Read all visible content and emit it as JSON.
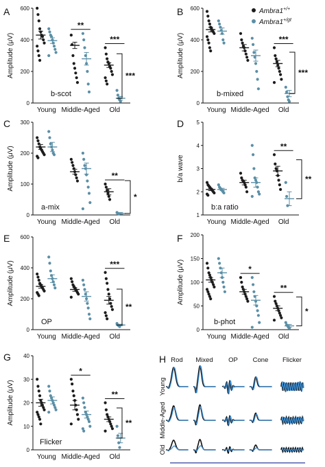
{
  "legend": {
    "wt": "Ambra1",
    "wt_sup": "+/+",
    "gt": "Ambra1",
    "gt_sup": "+/gt",
    "wt_color": "#1c1c1c",
    "gt_color": "#5b8fa6"
  },
  "chart_data": [
    {
      "id": "A",
      "type": "scatter",
      "ylabel": "Amplitude (μV)",
      "annotation": "b-scot",
      "categories": [
        "Young",
        "Middle-Aged",
        "Old"
      ],
      "ylim": [
        0,
        600
      ],
      "yticks": [
        0,
        200,
        400,
        600
      ],
      "series": [
        {
          "values": [
            [
              600,
              560,
              520,
              470,
              450,
              430,
              420,
              400,
              380,
              360,
              330,
              300,
              270
            ],
            [
              430,
              370,
              300,
              250,
              220,
              190,
              160,
              130
            ],
            [
              350,
              310,
              280,
              260,
              250,
              230,
              220,
              200,
              180,
              160,
              140,
              120
            ]
          ],
          "means": [
            430,
            365,
            240
          ],
          "sems": [
            25,
            20,
            15
          ]
        },
        {
          "values": [
            [
              470,
              450,
              430,
              420,
              400,
              380,
              360,
              340,
              320,
              300
            ],
            [
              440,
              400,
              350,
              300,
              250,
              200,
              120,
              70
            ],
            [
              80,
              50,
              30,
              20,
              10
            ]
          ],
          "means": [
            395,
            280,
            30
          ],
          "sems": [
            18,
            40,
            12
          ]
        }
      ],
      "sig": [
        {
          "text": "**",
          "group": 1
        },
        {
          "text": "***",
          "group": 2
        },
        {
          "text": "***",
          "group": "bracket"
        }
      ]
    },
    {
      "id": "B",
      "type": "scatter",
      "ylabel": "Amplitude (μV)",
      "annotation": "b-mixed",
      "categories": [
        "Young",
        "Middle-Aged",
        "Old"
      ],
      "ylim": [
        0,
        600
      ],
      "yticks": [
        0,
        200,
        400,
        600
      ],
      "series": [
        {
          "values": [
            [
              580,
              550,
              520,
              500,
              480,
              470,
              460,
              450,
              440,
              420,
              400,
              380,
              350,
              330
            ],
            [
              440,
              400,
              380,
              360,
              350,
              330,
              310,
              290,
              270
            ],
            [
              350,
              300,
              280,
              260,
              240,
              220,
              200,
              180,
              150,
              130
            ]
          ],
          "means": [
            465,
            350,
            250
          ],
          "sems": [
            15,
            20,
            20
          ]
        },
        {
          "values": [
            [
              520,
              500,
              480,
              460,
              440,
              400,
              380
            ],
            [
              410,
              370,
              320,
              290,
              250,
              200,
              150,
              90
            ],
            [
              100,
              70,
              40,
              20,
              10
            ]
          ],
          "means": [
            455,
            300,
            60
          ],
          "sems": [
            20,
            35,
            20
          ]
        }
      ],
      "sig": [
        {
          "text": "***",
          "group": 2
        },
        {
          "text": "***",
          "group": "bracket"
        }
      ]
    },
    {
      "id": "C",
      "type": "scatter",
      "ylabel": "Amplitude (μV)",
      "annotation": "a-mix",
      "categories": [
        "Young",
        "Middle-Aged",
        "Old"
      ],
      "ylim": [
        0,
        300
      ],
      "yticks": [
        0,
        100,
        200,
        300
      ],
      "series": [
        {
          "values": [
            [
              250,
              240,
              230,
              220,
              215,
              210,
              205,
              200,
              195,
              190,
              185
            ],
            [
              180,
              170,
              160,
              150,
              140,
              130,
              120,
              110
            ],
            [
              100,
              90,
              80,
              70,
              60,
              50
            ]
          ],
          "means": [
            220,
            140,
            75
          ],
          "sems": [
            8,
            8,
            10
          ]
        },
        {
          "values": [
            [
              270,
              250,
              230,
              220,
              210,
              200,
              195
            ],
            [
              200,
              180,
              160,
              150,
              130,
              110,
              90,
              70,
              40,
              20
            ],
            [
              8,
              5,
              3
            ]
          ],
          "means": [
            220,
            150,
            5
          ],
          "sems": [
            15,
            18,
            3
          ]
        }
      ],
      "sig": [
        {
          "text": "**",
          "group": 2
        },
        {
          "text": "*",
          "group": "bracket"
        }
      ]
    },
    {
      "id": "D",
      "type": "scatter",
      "ylabel": "b/a wave",
      "annotation": "b:a ratio",
      "categories": [
        "Young",
        "Middle-Aged",
        "Old"
      ],
      "ylim": [
        1,
        5
      ],
      "yticks": [
        1,
        2,
        3,
        4,
        5
      ],
      "series": [
        {
          "values": [
            [
              2.4,
              2.3,
              2.25,
              2.2,
              2.15,
              2.1,
              2.05,
              2.0,
              1.95,
              1.9,
              1.85
            ],
            [
              2.8,
              2.6,
              2.5,
              2.45,
              2.4,
              2.3,
              2.2,
              2.0
            ],
            [
              3.6,
              3.2,
              3.0,
              2.9,
              2.7,
              2.5,
              2.3,
              2.1
            ]
          ],
          "means": [
            2.1,
            2.4,
            2.9
          ],
          "sems": [
            0.05,
            0.1,
            0.2
          ]
        },
        {
          "values": [
            [
              2.3,
              2.2,
              2.15,
              2.1,
              2.05,
              2.0,
              1.95
            ],
            [
              4.0,
              3.6,
              3.0,
              2.6,
              2.5,
              2.4,
              2.2,
              2.0,
              1.9,
              1.8
            ],
            [
              2.4,
              1.8,
              1.4
            ]
          ],
          "means": [
            2.1,
            2.4,
            1.7
          ],
          "sems": [
            0.05,
            0.2,
            0.3
          ]
        }
      ],
      "sig": [
        {
          "text": "**",
          "group": 2
        },
        {
          "text": "**",
          "group": "bracket"
        }
      ]
    },
    {
      "id": "E",
      "type": "scatter",
      "ylabel": "Amplitude (μV)",
      "annotation": "OP",
      "categories": [
        "Young",
        "Middle-Aged",
        "Old"
      ],
      "ylim": [
        0,
        600
      ],
      "yticks": [
        0,
        200,
        400,
        600
      ],
      "series": [
        {
          "values": [
            [
              360,
              340,
              320,
              300,
              290,
              280,
              270,
              260,
              250,
              240,
              230,
              220
            ],
            [
              330,
              310,
              290,
              280,
              270,
              260,
              250,
              240,
              230,
              210
            ],
            [
              370,
              330,
              300,
              260,
              230,
              200,
              170,
              150,
              130,
              110,
              90,
              70
            ]
          ],
          "means": [
            280,
            260,
            190
          ],
          "sems": [
            12,
            12,
            25
          ]
        },
        {
          "values": [
            [
              470,
              430,
              380,
              350,
              330,
              310,
              290,
              270
            ],
            [
              320,
              290,
              260,
              230,
              200,
              170,
              140,
              100,
              70
            ],
            [
              40,
              30,
              25,
              20
            ]
          ],
          "means": [
            330,
            215,
            30
          ],
          "sems": [
            25,
            30,
            5
          ]
        }
      ],
      "sig": [
        {
          "text": "***",
          "group": 2
        },
        {
          "text": "**",
          "group": "bracket"
        }
      ]
    },
    {
      "id": "F",
      "type": "scatter",
      "ylabel": "Amplitude (μV)",
      "annotation": "b-phot",
      "categories": [
        "Young",
        "Middle-Aged",
        "Old"
      ],
      "ylim": [
        0,
        200
      ],
      "yticks": [
        0,
        50,
        100,
        150,
        200
      ],
      "series": [
        {
          "values": [
            [
              140,
              130,
              120,
              115,
              110,
              105,
              100,
              95,
              90,
              85,
              80,
              75,
              70,
              65
            ],
            [
              110,
              100,
              90,
              85,
              80,
              75,
              70,
              65,
              60
            ],
            [
              70,
              60,
              55,
              50,
              45,
              40,
              35,
              30,
              25,
              20
            ]
          ],
          "means": [
            105,
            80,
            45
          ],
          "sems": [
            5,
            5,
            5
          ]
        },
        {
          "values": [
            [
              150,
              140,
              130,
              120,
              110,
              100,
              90,
              80
            ],
            [
              110,
              95,
              80,
              70,
              60,
              50,
              40,
              30,
              15,
              5
            ],
            [
              15,
              10,
              8,
              5,
              3
            ]
          ],
          "means": [
            120,
            62,
            8
          ],
          "sems": [
            10,
            10,
            3
          ]
        }
      ],
      "sig": [
        {
          "text": "*",
          "group": 1
        },
        {
          "text": "**",
          "group": 2
        },
        {
          "text": "*",
          "group": "bracket"
        }
      ]
    },
    {
      "id": "G",
      "type": "scatter",
      "ylabel": "Amplitude (μV)",
      "annotation": "Flicker",
      "categories": [
        "Young",
        "Middle-Aged",
        "Old"
      ],
      "ylim": [
        0,
        40
      ],
      "yticks": [
        0,
        10,
        20,
        30,
        40
      ],
      "series": [
        {
          "values": [
            [
              30,
              27,
              25,
              23,
              21,
              20,
              19,
              18,
              17,
              16,
              15,
              14,
              13,
              11
            ],
            [
              30,
              28,
              25,
              23,
              21,
              19,
              17,
              15,
              13,
              11
            ],
            [
              20,
              17,
              15,
              14,
              13,
              12,
              11,
              10,
              9,
              8
            ]
          ],
          "means": [
            20,
            19,
            13
          ],
          "sems": [
            1.5,
            2,
            1
          ]
        },
        {
          "values": [
            [
              27,
              25,
              23,
              22,
              21,
              20,
              19,
              18,
              17,
              16
            ],
            [
              22,
              20,
              18,
              16,
              15,
              14,
              13,
              12,
              10,
              9,
              8
            ],
            [
              10,
              6,
              3,
              1
            ]
          ],
          "means": [
            21,
            15,
            5
          ],
          "sems": [
            1.5,
            1.5,
            2
          ]
        }
      ],
      "sig": [
        {
          "text": "*",
          "group": 1
        },
        {
          "text": "**",
          "group": 2
        },
        {
          "text": "**",
          "group": "bracket"
        }
      ]
    }
  ],
  "panel_h": {
    "label": "H",
    "columns": [
      "Rod",
      "Mixed",
      "OP",
      "Cone",
      "Flicker"
    ],
    "rows": [
      "Young",
      "Middle-Aged",
      "Old"
    ]
  }
}
